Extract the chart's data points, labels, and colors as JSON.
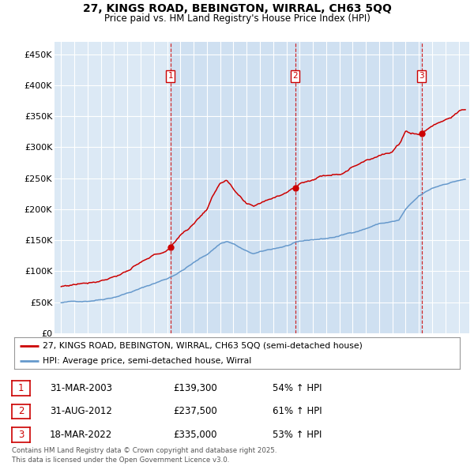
{
  "title": "27, KINGS ROAD, BEBINGTON, WIRRAL, CH63 5QQ",
  "subtitle": "Price paid vs. HM Land Registry's House Price Index (HPI)",
  "plot_bg_color": "#dce9f5",
  "red_label": "27, KINGS ROAD, BEBINGTON, WIRRAL, CH63 5QQ (semi-detached house)",
  "blue_label": "HPI: Average price, semi-detached house, Wirral",
  "footer": "Contains HM Land Registry data © Crown copyright and database right 2025.\nThis data is licensed under the Open Government Licence v3.0.",
  "sale_markers": [
    {
      "num": 1,
      "date": "31-MAR-2003",
      "price": 139300,
      "pct": "54%",
      "x_year": 2003.25
    },
    {
      "num": 2,
      "date": "31-AUG-2012",
      "price": 237500,
      "pct": "61%",
      "x_year": 2012.67
    },
    {
      "num": 3,
      "date": "18-MAR-2022",
      "price": 335000,
      "pct": "53%",
      "x_year": 2022.21
    }
  ],
  "ylim": [
    0,
    470000
  ],
  "yticks": [
    0,
    50000,
    100000,
    150000,
    200000,
    250000,
    300000,
    350000,
    400000,
    450000
  ],
  "ytick_labels": [
    "£0",
    "£50K",
    "£100K",
    "£150K",
    "£200K",
    "£250K",
    "£300K",
    "£350K",
    "£400K",
    "£450K"
  ],
  "xlim_start": 1994.5,
  "xlim_end": 2025.8,
  "xticks": [
    1995,
    1996,
    1997,
    1998,
    1999,
    2000,
    2001,
    2002,
    2003,
    2004,
    2005,
    2006,
    2007,
    2008,
    2009,
    2010,
    2011,
    2012,
    2013,
    2014,
    2015,
    2016,
    2017,
    2018,
    2019,
    2020,
    2021,
    2022,
    2023,
    2024,
    2025
  ],
  "red_color": "#cc0000",
  "blue_color": "#6699cc",
  "shade_color": "#c5d9ee",
  "marker_box_color": "#cc0000",
  "grid_color": "#ffffff"
}
